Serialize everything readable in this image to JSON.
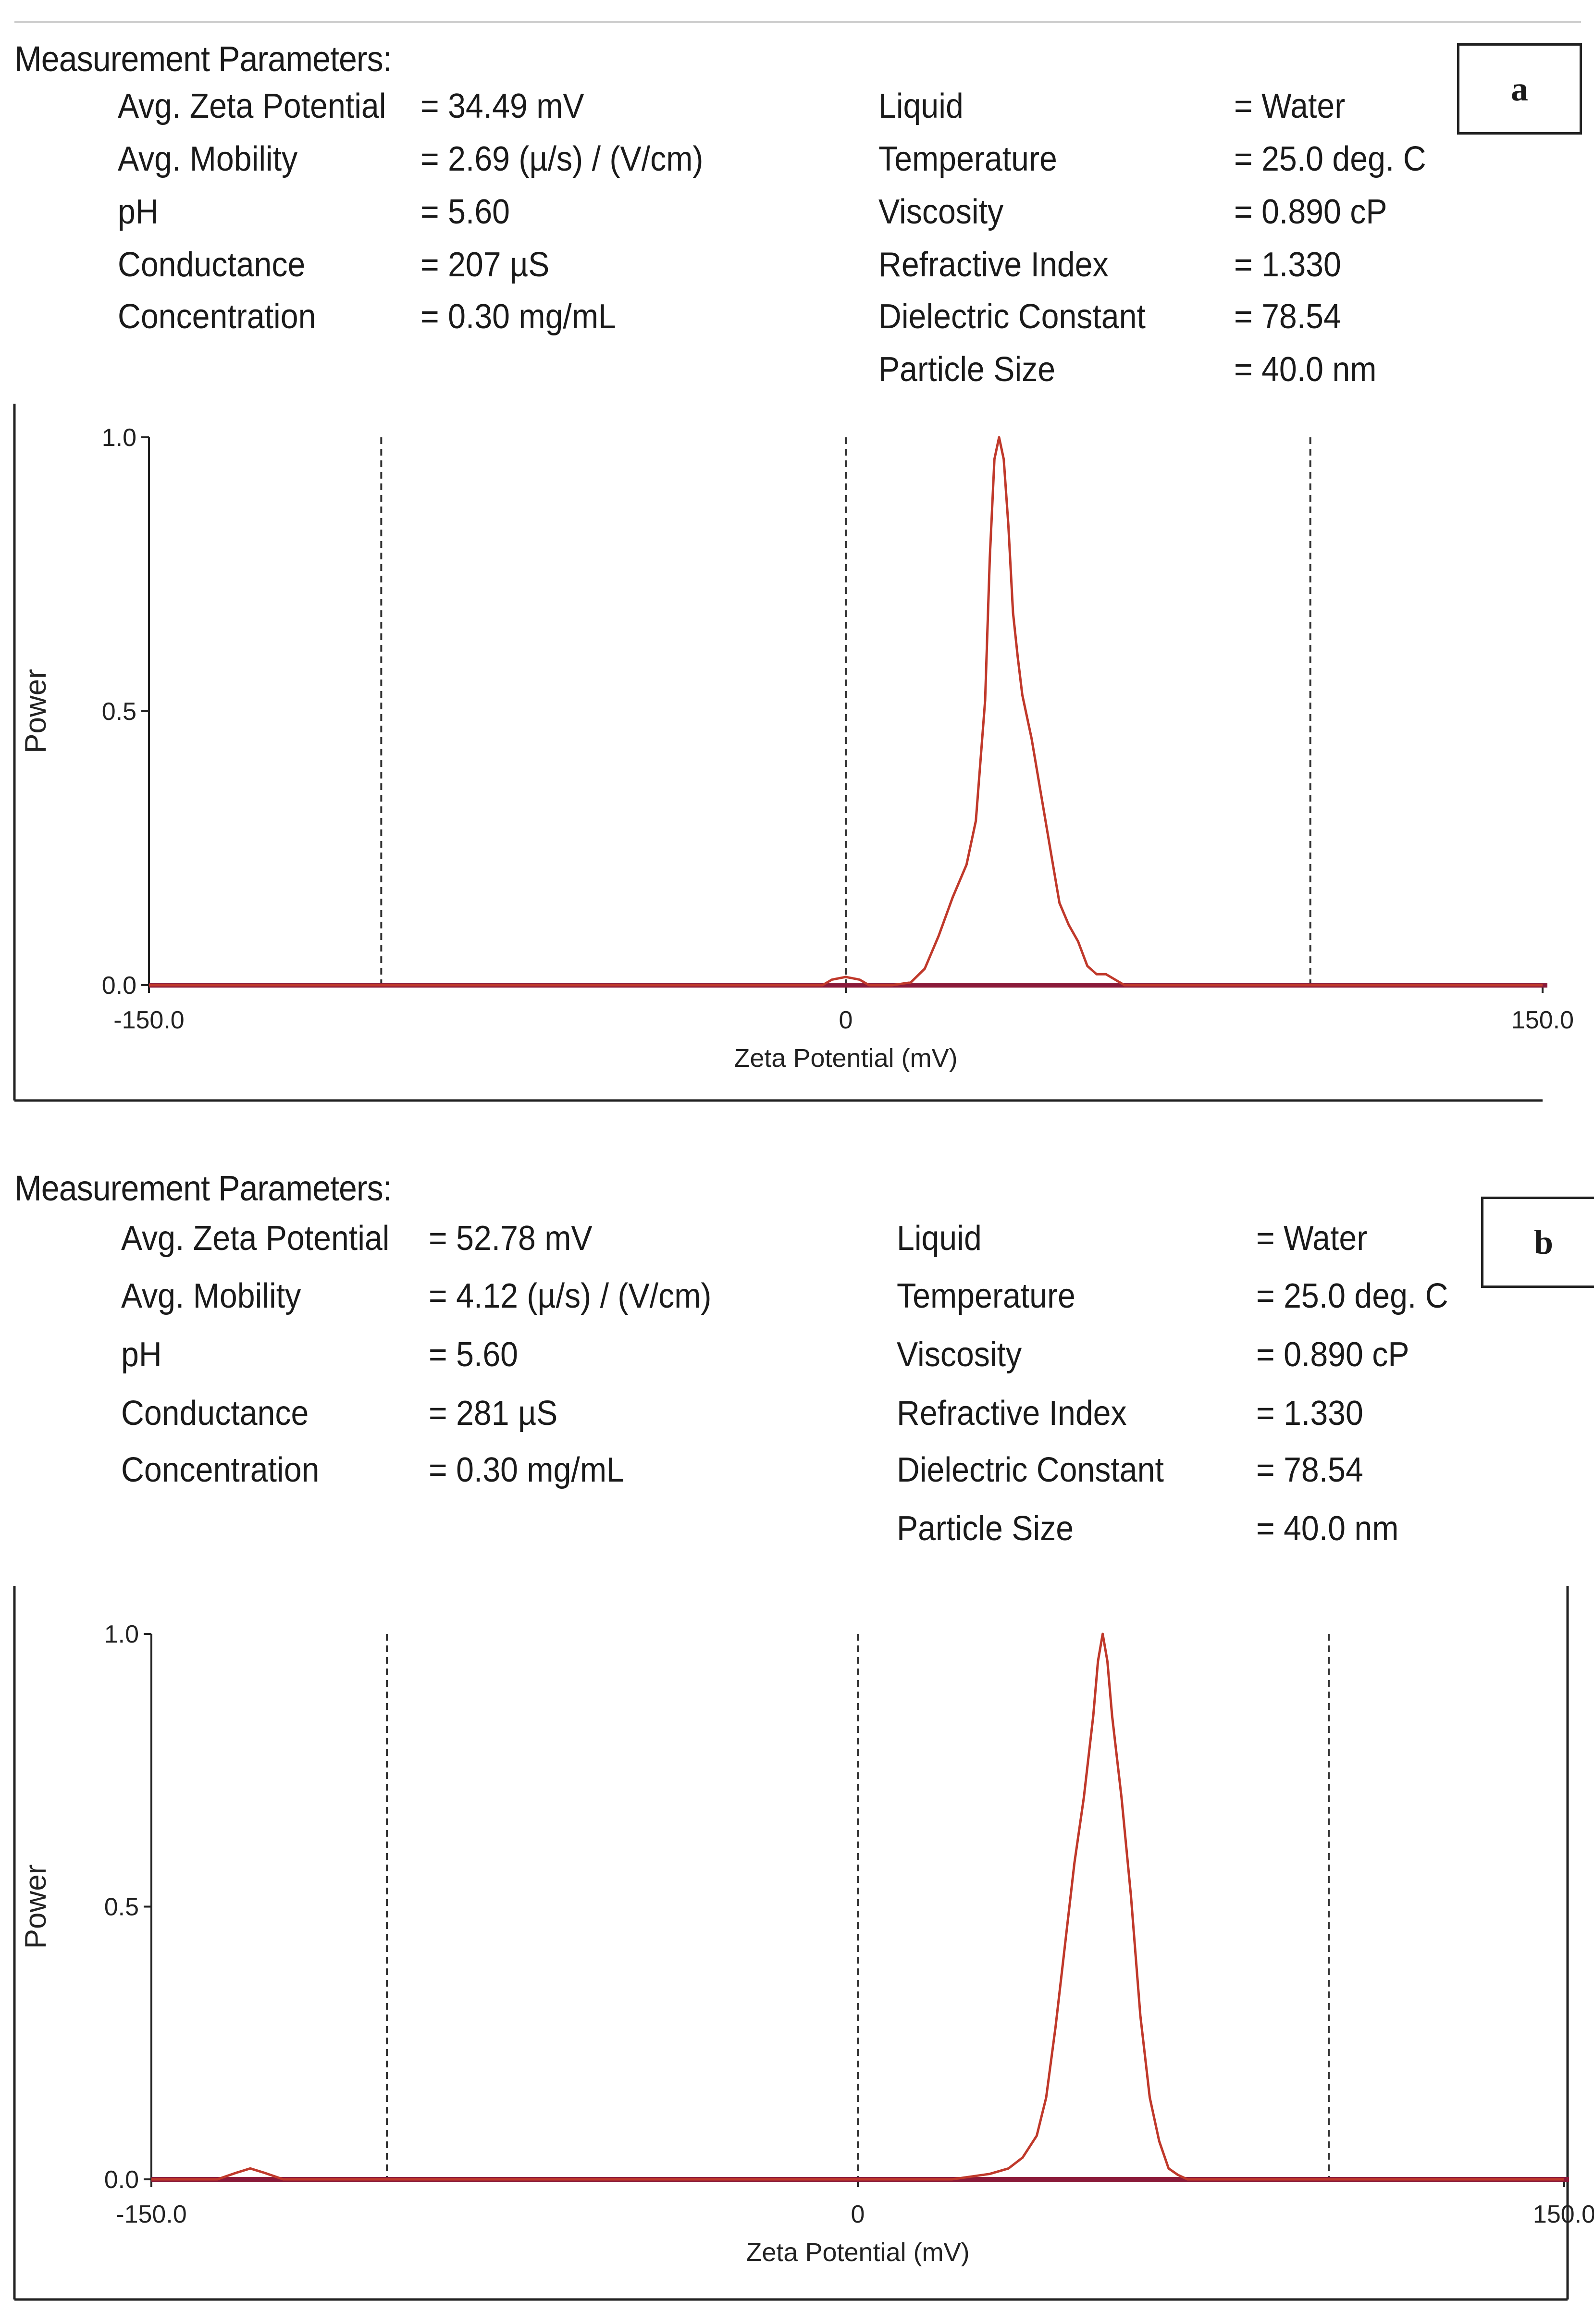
{
  "panels": [
    {
      "label": "a",
      "title": "Measurement Parameters:",
      "left_params": [
        {
          "name": "Avg. Zeta Potential",
          "value": "= 34.49 mV"
        },
        {
          "name": "Avg. Mobility",
          "value": "= 2.69 (µ/s) / (V/cm)"
        },
        {
          "name": "pH",
          "value": "= 5.60"
        },
        {
          "name": "Conductance",
          "value": "= 207 µS"
        },
        {
          "name": "Concentration",
          "value": "= 0.30 mg/mL"
        }
      ],
      "right_params": [
        {
          "name": "Liquid",
          "value": "= Water"
        },
        {
          "name": "Temperature",
          "value": "= 25.0 deg. C"
        },
        {
          "name": "Viscosity",
          "value": "= 0.890 cP"
        },
        {
          "name": "Refractive Index",
          "value": "= 1.330"
        },
        {
          "name": "Dielectric Constant",
          "value": "= 78.54"
        },
        {
          "name": "Particle Size",
          "value": "= 40.0 nm"
        }
      ]
    },
    {
      "label": "b",
      "title": "Measurement Parameters:",
      "left_params": [
        {
          "name": "Avg. Zeta Potential",
          "value": "= 52.78 mV"
        },
        {
          "name": "Avg. Mobility",
          "value": "= 4.12 (µ/s) / (V/cm)"
        },
        {
          "name": "pH",
          "value": "= 5.60"
        },
        {
          "name": "Conductance",
          "value": "= 281 µS"
        },
        {
          "name": "Concentration",
          "value": "= 0.30 mg/mL"
        }
      ],
      "right_params": [
        {
          "name": "Liquid",
          "value": "= Water"
        },
        {
          "name": "Temperature",
          "value": "= 25.0 deg. C"
        },
        {
          "name": "Viscosity",
          "value": "= 0.890 cP"
        },
        {
          "name": "Refractive Index",
          "value": "= 1.330"
        },
        {
          "name": "Dielectric Constant",
          "value": "= 78.54"
        },
        {
          "name": "Particle Size",
          "value": "= 40.0 nm"
        }
      ]
    }
  ],
  "colors": {
    "curve": "#c0392b",
    "baseline": "#8b1a3a",
    "axis": "#222222",
    "dashed": "#333333"
  },
  "chart_data": [
    {
      "type": "line",
      "panel": "a",
      "title": "",
      "xlabel": "Zeta Potential (mV)",
      "ylabel": "Power",
      "xlim": [
        -150,
        150
      ],
      "ylim": [
        0,
        1
      ],
      "x_ticks": [
        -150,
        0,
        150
      ],
      "x_tick_labels": [
        "-150.0",
        "0",
        "150.0"
      ],
      "y_ticks": [
        0,
        0.5,
        1
      ],
      "y_tick_labels": [
        "0.0",
        "0.5",
        "1.0"
      ],
      "dashed_lines": [
        -100,
        0,
        100
      ],
      "series": [
        {
          "name": "Power",
          "x": [
            -150,
            -5,
            -3,
            0,
            3,
            5,
            10,
            14,
            17,
            20,
            23,
            26,
            28,
            30,
            31,
            32,
            33,
            34,
            35,
            36,
            37,
            38,
            40,
            42,
            44,
            46,
            48,
            50,
            52,
            54,
            56,
            58,
            60,
            150
          ],
          "y": [
            0,
            0,
            0.01,
            0.015,
            0.01,
            0,
            0,
            0.005,
            0.03,
            0.09,
            0.16,
            0.22,
            0.3,
            0.52,
            0.78,
            0.96,
            1.0,
            0.96,
            0.84,
            0.68,
            0.6,
            0.53,
            0.45,
            0.35,
            0.25,
            0.15,
            0.11,
            0.08,
            0.035,
            0.02,
            0.02,
            0.01,
            0,
            0
          ]
        }
      ]
    },
    {
      "type": "line",
      "panel": "b",
      "title": "",
      "xlabel": "Zeta Potential (mV)",
      "ylabel": "Power",
      "xlim": [
        -150,
        150
      ],
      "ylim": [
        0,
        1
      ],
      "x_ticks": [
        -150,
        0,
        150
      ],
      "x_tick_labels": [
        "-150.0",
        "0",
        "150.0"
      ],
      "y_ticks": [
        0,
        0.5,
        1
      ],
      "y_tick_labels": [
        "0.0",
        "0.5",
        "1.0"
      ],
      "dashed_lines": [
        -100,
        0,
        100
      ],
      "series": [
        {
          "name": "Power",
          "x": [
            -150,
            -136,
            -132,
            -129,
            -126,
            -122,
            20,
            24,
            28,
            32,
            35,
            38,
            40,
            42,
            44,
            46,
            48,
            50,
            51,
            52,
            53,
            54,
            56,
            58,
            60,
            62,
            64,
            66,
            68,
            70,
            150
          ],
          "y": [
            0,
            0,
            0.012,
            0.02,
            0.012,
            0,
            0,
            0.005,
            0.01,
            0.02,
            0.04,
            0.08,
            0.15,
            0.28,
            0.43,
            0.58,
            0.7,
            0.85,
            0.95,
            1.0,
            0.95,
            0.85,
            0.7,
            0.52,
            0.3,
            0.15,
            0.07,
            0.02,
            0.008,
            0,
            0
          ]
        }
      ]
    }
  ]
}
